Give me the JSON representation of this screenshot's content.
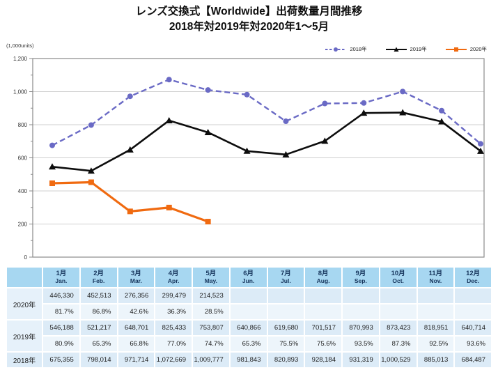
{
  "title": {
    "line1": "レンズ交換式【Worldwide】出荷数量月間推移",
    "line2": "2018年対2019年対2020年1～5月"
  },
  "chart_data": {
    "type": "line",
    "title": "レンズ交換式【Worldwide】出荷数量月間推移 2018年対2019年対2020年1～5月",
    "unit_label": "(1,000units)",
    "xlabel": "",
    "ylabel": "(1,000units)",
    "ylim": [
      0,
      1200000
    ],
    "ytick_minor_step": 100000,
    "grid": true,
    "legend_position": "top-right",
    "yticks": [
      {
        "value": 0,
        "label": "0"
      },
      {
        "value": 200000,
        "label": "200"
      },
      {
        "value": 400000,
        "label": "400"
      },
      {
        "value": 600000,
        "label": "600"
      },
      {
        "value": 800000,
        "label": "800"
      },
      {
        "value": 1000000,
        "label": "1,000"
      },
      {
        "value": 1200000,
        "label": "1,200"
      }
    ],
    "categories": [
      "1月",
      "2月",
      "3月",
      "4月",
      "5月",
      "6月",
      "7月",
      "8月",
      "9月",
      "10月",
      "11月",
      "12月"
    ],
    "series": [
      {
        "name": "2018年",
        "color": "#6a6ac5",
        "line": "dashed",
        "dash": "8 4.5",
        "marker": "circle",
        "width": 2.4,
        "values": [
          675355,
          798014,
          971714,
          1072669,
          1009777,
          981843,
          820893,
          928184,
          931319,
          1000529,
          885013,
          684487
        ]
      },
      {
        "name": "2019年",
        "color": "#0d0d0d",
        "line": "solid",
        "dash": "",
        "marker": "triangle",
        "width": 2.6,
        "values": [
          546188,
          521217,
          648701,
          825433,
          753807,
          640866,
          619680,
          701517,
          870993,
          873423,
          818951,
          640714
        ]
      },
      {
        "name": "2020年",
        "color": "#f06a10",
        "line": "solid",
        "dash": "",
        "marker": "square",
        "width": 3.2,
        "values": [
          446330,
          452513,
          276356,
          299479,
          214523
        ]
      }
    ]
  },
  "table": {
    "months_jp": [
      "1月",
      "2月",
      "3月",
      "4月",
      "5月",
      "6月",
      "7月",
      "8月",
      "9月",
      "10月",
      "11月",
      "12月"
    ],
    "months_en": [
      "Jan.",
      "Feb.",
      "Mar.",
      "Apr.",
      "May.",
      "Jun.",
      "Jul.",
      "Aug.",
      "Sep.",
      "Oct.",
      "Nov.",
      "Dec."
    ],
    "rows": [
      {
        "label": "2020年",
        "values": [
          "446,330",
          "452,513",
          "276,356",
          "299,479",
          "214,523",
          "",
          "",
          "",
          "",
          "",
          "",
          ""
        ],
        "percents": [
          "81.7%",
          "86.8%",
          "42.6%",
          "36.3%",
          "28.5%",
          "",
          "",
          "",
          "",
          "",
          "",
          ""
        ]
      },
      {
        "label": "2019年",
        "values": [
          "546,188",
          "521,217",
          "648,701",
          "825,433",
          "753,807",
          "640,866",
          "619,680",
          "701,517",
          "870,993",
          "873,423",
          "818,951",
          "640,714"
        ],
        "percents": [
          "80.9%",
          "65.3%",
          "66.8%",
          "77.0%",
          "74.7%",
          "65.3%",
          "75.5%",
          "75.6%",
          "93.5%",
          "87.3%",
          "92.5%",
          "93.6%"
        ]
      },
      {
        "label": "2018年",
        "values": [
          "675,355",
          "798,014",
          "971,714",
          "1,072,669",
          "1,009,777",
          "981,843",
          "820,893",
          "928,184",
          "931,319",
          "1,000,529",
          "885,013",
          "684,487"
        ],
        "percents": null
      }
    ]
  },
  "colors": {
    "series_2018": "#6a6ac5",
    "series_2019": "#0d0d0d",
    "series_2020": "#f06a10",
    "grid_line": "#cfcfcf",
    "axis_frame": "#8a8a8a",
    "table_header_bg": "#a7d7f1",
    "table_header_text": "#17365d",
    "table_value_row_bg": "#dcebf7",
    "table_percent_row_bg": "#edf5fb",
    "table_label_cell_bg": "#e6f1fa"
  }
}
